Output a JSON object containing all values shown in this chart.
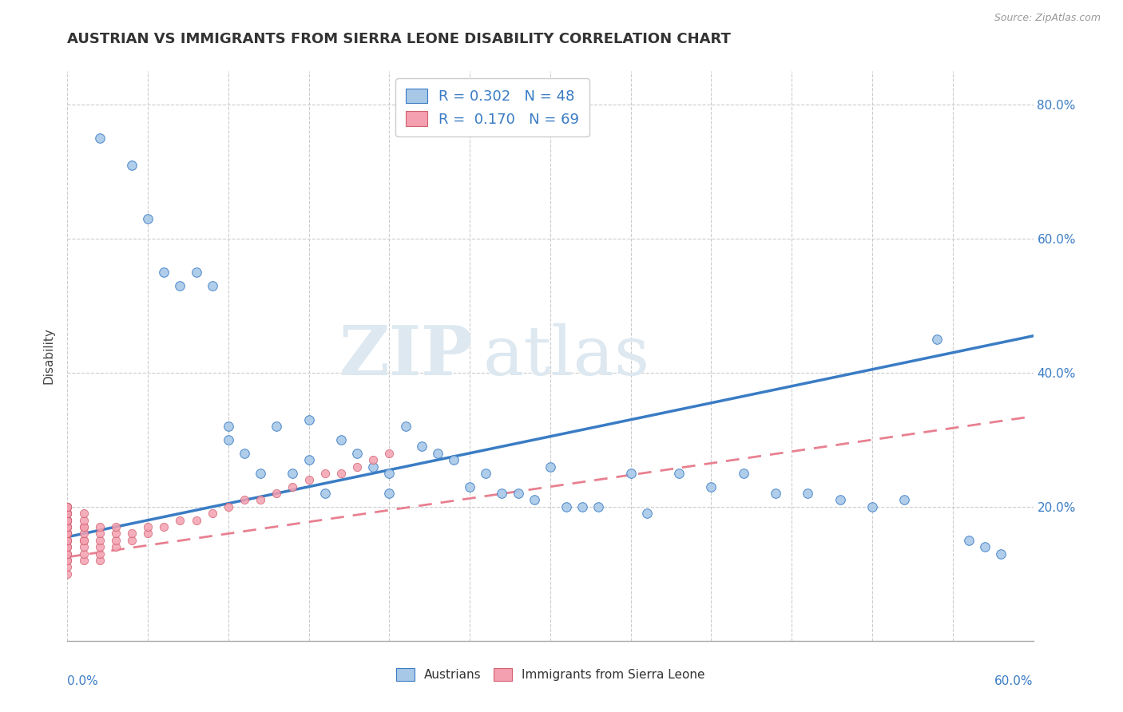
{
  "title": "AUSTRIAN VS IMMIGRANTS FROM SIERRA LEONE DISABILITY CORRELATION CHART",
  "source": "Source: ZipAtlas.com",
  "ylabel": "Disability",
  "xlim": [
    0.0,
    0.6
  ],
  "ylim": [
    0.0,
    0.85
  ],
  "yticks": [
    0.0,
    0.2,
    0.4,
    0.6,
    0.8
  ],
  "legend_R_austrians": "0.302",
  "legend_N_austrians": "48",
  "legend_R_sierra": "0.170",
  "legend_N_sierra": "69",
  "austrian_color": "#a8c8e8",
  "sierra_color": "#f4a0b0",
  "trendline_austrian_color": "#3a7cc4",
  "trendline_sierra_color": "#e88090",
  "background_color": "#ffffff",
  "watermark_zip": "ZIP",
  "watermark_atlas": "atlas",
  "austrian_trendline_x0": 0.0,
  "austrian_trendline_y0": 0.155,
  "austrian_trendline_x1": 0.6,
  "austrian_trendline_y1": 0.455,
  "sierra_trendline_x0": 0.0,
  "sierra_trendline_y0": 0.125,
  "sierra_trendline_x1": 0.6,
  "sierra_trendline_y1": 0.335,
  "austrians_x": [
    0.02,
    0.04,
    0.05,
    0.06,
    0.07,
    0.08,
    0.09,
    0.1,
    0.1,
    0.11,
    0.12,
    0.13,
    0.14,
    0.15,
    0.15,
    0.16,
    0.17,
    0.18,
    0.19,
    0.2,
    0.2,
    0.21,
    0.22,
    0.23,
    0.24,
    0.25,
    0.26,
    0.27,
    0.28,
    0.29,
    0.3,
    0.31,
    0.32,
    0.33,
    0.35,
    0.36,
    0.38,
    0.4,
    0.42,
    0.44,
    0.46,
    0.48,
    0.5,
    0.52,
    0.54,
    0.56,
    0.57,
    0.58
  ],
  "austrians_y": [
    0.75,
    0.71,
    0.63,
    0.55,
    0.53,
    0.55,
    0.53,
    0.32,
    0.3,
    0.28,
    0.25,
    0.32,
    0.25,
    0.27,
    0.33,
    0.22,
    0.3,
    0.28,
    0.26,
    0.25,
    0.22,
    0.32,
    0.29,
    0.28,
    0.27,
    0.23,
    0.25,
    0.22,
    0.22,
    0.21,
    0.26,
    0.2,
    0.2,
    0.2,
    0.25,
    0.19,
    0.25,
    0.23,
    0.25,
    0.22,
    0.22,
    0.21,
    0.2,
    0.21,
    0.45,
    0.15,
    0.14,
    0.13
  ],
  "sierra_x": [
    0.0,
    0.0,
    0.0,
    0.0,
    0.0,
    0.0,
    0.0,
    0.0,
    0.0,
    0.0,
    0.0,
    0.0,
    0.0,
    0.0,
    0.0,
    0.0,
    0.0,
    0.0,
    0.0,
    0.0,
    0.0,
    0.0,
    0.0,
    0.0,
    0.0,
    0.0,
    0.0,
    0.0,
    0.0,
    0.0,
    0.01,
    0.01,
    0.01,
    0.01,
    0.01,
    0.01,
    0.01,
    0.01,
    0.01,
    0.01,
    0.02,
    0.02,
    0.02,
    0.02,
    0.02,
    0.02,
    0.03,
    0.03,
    0.03,
    0.03,
    0.04,
    0.04,
    0.05,
    0.05,
    0.06,
    0.07,
    0.08,
    0.09,
    0.1,
    0.11,
    0.12,
    0.13,
    0.14,
    0.15,
    0.16,
    0.17,
    0.18,
    0.19,
    0.2
  ],
  "sierra_y": [
    0.1,
    0.11,
    0.12,
    0.12,
    0.13,
    0.13,
    0.14,
    0.14,
    0.15,
    0.15,
    0.15,
    0.16,
    0.16,
    0.16,
    0.16,
    0.17,
    0.17,
    0.17,
    0.18,
    0.18,
    0.18,
    0.18,
    0.18,
    0.19,
    0.19,
    0.19,
    0.2,
    0.2,
    0.2,
    0.2,
    0.12,
    0.13,
    0.14,
    0.15,
    0.15,
    0.16,
    0.17,
    0.17,
    0.18,
    0.19,
    0.12,
    0.13,
    0.14,
    0.15,
    0.16,
    0.17,
    0.14,
    0.15,
    0.16,
    0.17,
    0.15,
    0.16,
    0.16,
    0.17,
    0.17,
    0.18,
    0.18,
    0.19,
    0.2,
    0.21,
    0.21,
    0.22,
    0.23,
    0.24,
    0.25,
    0.25,
    0.26,
    0.27,
    0.28
  ]
}
